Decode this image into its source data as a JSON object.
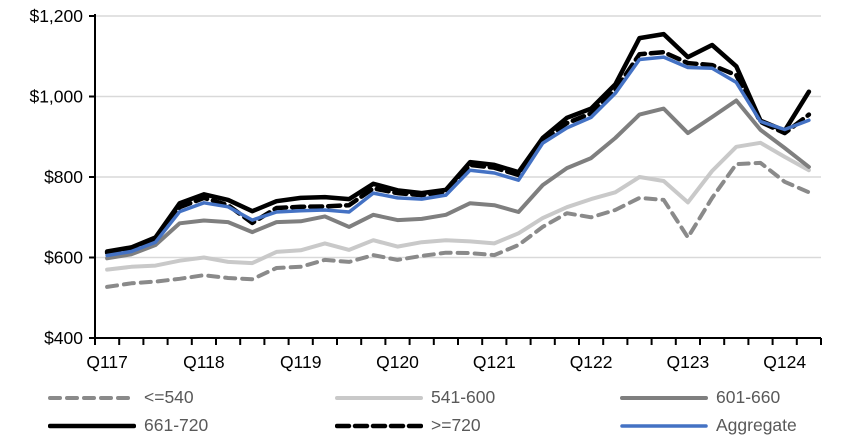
{
  "chart_data": {
    "type": "line",
    "title": "",
    "xlabel": "",
    "ylabel": "",
    "ylim": [
      400,
      1200
    ],
    "y_gridline_values": [
      400,
      600,
      800,
      1000,
      1200
    ],
    "y_tick_labels": [
      "$400",
      "$600",
      "$800",
      "$1,000",
      "$1,200"
    ],
    "x_tick_labels": [
      "Q117",
      "Q118",
      "Q119",
      "Q120",
      "Q121",
      "Q122",
      "Q123",
      "Q124"
    ],
    "categories": [
      "2017Q1",
      "2017Q2",
      "2017Q3",
      "2017Q4",
      "2018Q1",
      "2018Q2",
      "2018Q3",
      "2018Q4",
      "2019Q1",
      "2019Q2",
      "2019Q3",
      "2019Q4",
      "2020Q1",
      "2020Q2",
      "2020Q3",
      "2020Q4",
      "2021Q1",
      "2021Q2",
      "2021Q3",
      "2021Q4",
      "2022Q1",
      "2022Q2",
      "2022Q3",
      "2022Q4",
      "2023Q1",
      "2023Q2",
      "2023Q3",
      "2023Q4",
      "2024Q1",
      "2024Q2"
    ],
    "grid_on": true,
    "legend_position": "bottom",
    "series": [
      {
        "name": "<=540",
        "color": "#8a8a8a",
        "dash": "10 7",
        "width": 4,
        "values": [
          527,
          536,
          540,
          547,
          556,
          549,
          546,
          574,
          577,
          594,
          589,
          606,
          594,
          604,
          612,
          611,
          606,
          631,
          676,
          710,
          700,
          718,
          748,
          743,
          650,
          748,
          832,
          835,
          788,
          762
        ]
      },
      {
        "name": "541-600",
        "color": "#c9c9c9",
        "dash": "",
        "width": 4,
        "values": [
          570,
          577,
          580,
          592,
          600,
          589,
          586,
          614,
          618,
          635,
          619,
          643,
          627,
          638,
          643,
          640,
          635,
          660,
          698,
          725,
          745,
          762,
          800,
          790,
          737,
          815,
          875,
          885,
          850,
          817
        ]
      },
      {
        "name": "601-660",
        "color": "#7f7f7f",
        "dash": "",
        "width": 4,
        "values": [
          598,
          608,
          631,
          685,
          692,
          688,
          663,
          688,
          690,
          702,
          676,
          706,
          693,
          696,
          706,
          735,
          730,
          713,
          780,
          822,
          847,
          897,
          955,
          970,
          909,
          949,
          990,
          917,
          872,
          825
        ]
      },
      {
        "name": "661-720",
        "color": "#000000",
        "dash": "",
        "width": 4.5,
        "values": [
          615,
          625,
          650,
          735,
          757,
          743,
          715,
          740,
          748,
          750,
          745,
          783,
          767,
          760,
          768,
          837,
          830,
          812,
          897,
          947,
          970,
          1030,
          1145,
          1155,
          1098,
          1128,
          1075,
          940,
          915,
          1012
        ]
      },
      {
        "name": ">=720",
        "color": "#000000",
        "dash": "12 6",
        "width": 4.5,
        "values": [
          612,
          622,
          645,
          725,
          748,
          730,
          686,
          723,
          726,
          727,
          730,
          772,
          760,
          755,
          763,
          830,
          823,
          805,
          890,
          934,
          958,
          1016,
          1105,
          1110,
          1083,
          1078,
          1053,
          937,
          909,
          955
        ]
      },
      {
        "name": "Aggregate",
        "color": "#4472c4",
        "dash": "",
        "width": 3.5,
        "values": [
          605,
          615,
          638,
          714,
          736,
          726,
          693,
          713,
          716,
          718,
          713,
          760,
          748,
          745,
          755,
          817,
          810,
          792,
          884,
          922,
          948,
          1008,
          1092,
          1098,
          1072,
          1070,
          1035,
          938,
          918,
          941
        ]
      }
    ],
    "legend_rows": [
      [
        "<=540",
        "541-600",
        "601-660"
      ],
      [
        "661-720",
        ">=720",
        "Aggregate"
      ]
    ],
    "colors": {
      "gridline": "#d9d9d9",
      "axis": "#000000",
      "legend_text": "#595959",
      "axis_text": "#000000"
    }
  }
}
